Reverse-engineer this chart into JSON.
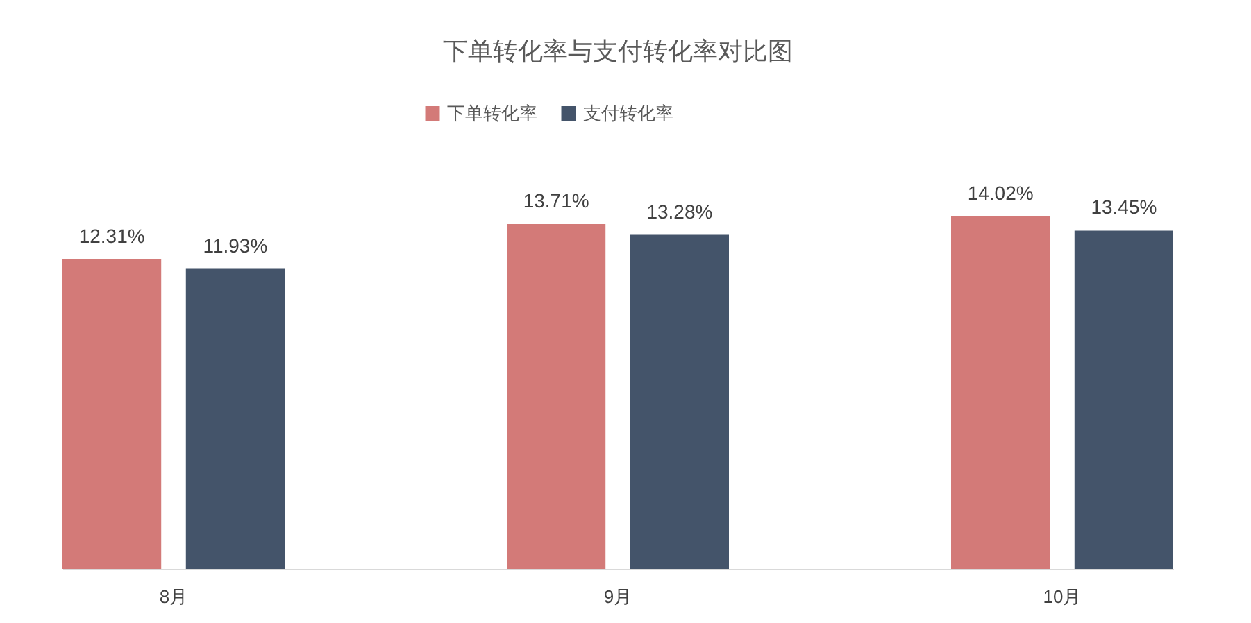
{
  "chart_data": {
    "type": "bar",
    "title": "下单转化率与支付转化率对比图",
    "categories": [
      "8月",
      "9月",
      "10月"
    ],
    "series": [
      {
        "name": "下单转化率",
        "color": "#d37a78",
        "values": [
          12.31,
          13.71,
          14.02
        ],
        "value_labels": [
          "12.31%",
          "13.71%",
          "14.02%"
        ]
      },
      {
        "name": "支付转化率",
        "color": "#44546a",
        "values": [
          11.93,
          13.28,
          13.45
        ],
        "value_labels": [
          "11.93%",
          "13.28%",
          "13.45%"
        ]
      }
    ],
    "legend": "top"
  }
}
